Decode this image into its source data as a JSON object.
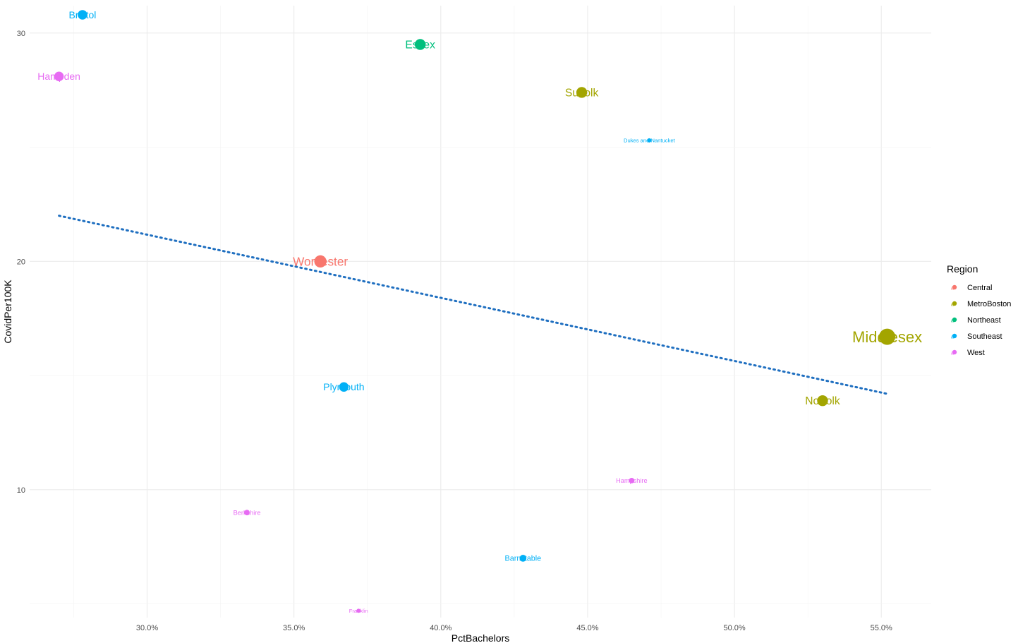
{
  "chart_data": {
    "type": "scatter",
    "xlabel": "PctBachelors",
    "ylabel": "CovidPer100K",
    "xlim": [
      0.26,
      0.567
    ],
    "ylim": [
      4.4,
      31.2
    ],
    "x_ticks": [
      0.3,
      0.35,
      0.4,
      0.45,
      0.5,
      0.55
    ],
    "x_tick_labels": [
      "30.0%",
      "35.0%",
      "40.0%",
      "45.0%",
      "50.0%",
      "55.0%"
    ],
    "y_ticks": [
      10,
      20,
      30
    ],
    "y_tick_labels": [
      "10",
      "20",
      "30"
    ],
    "grid": true,
    "legend": {
      "title": "Region",
      "placement": "right",
      "items": [
        {
          "label": "Central",
          "color": "#F8766D"
        },
        {
          "label": "MetroBoston",
          "color": "#A3A500"
        },
        {
          "label": "Northeast",
          "color": "#00BF7D"
        },
        {
          "label": "Southeast",
          "color": "#00B0F6"
        },
        {
          "label": "West",
          "color": "#E76BF3"
        }
      ]
    },
    "points": [
      {
        "label": "Bristol",
        "region": "Southeast",
        "x": 0.278,
        "y": 30.8,
        "size": 5
      },
      {
        "label": "Essex",
        "region": "Northeast",
        "x": 0.393,
        "y": 29.5,
        "size": 6
      },
      {
        "label": "Hampden",
        "region": "West",
        "x": 0.27,
        "y": 28.1,
        "size": 5
      },
      {
        "label": "Suffolk",
        "region": "MetroBoston",
        "x": 0.448,
        "y": 27.4,
        "size": 6
      },
      {
        "label": "Dukes and Nantucket",
        "region": "Southeast",
        "x": 0.471,
        "y": 25.3,
        "size": 1
      },
      {
        "label": "Worcester",
        "region": "Central",
        "x": 0.359,
        "y": 20.0,
        "size": 7
      },
      {
        "label": "Middlesex",
        "region": "MetroBoston",
        "x": 0.552,
        "y": 16.7,
        "size": 10
      },
      {
        "label": "Plymouth",
        "region": "Southeast",
        "x": 0.367,
        "y": 14.5,
        "size": 5
      },
      {
        "label": "Norfolk",
        "region": "MetroBoston",
        "x": 0.53,
        "y": 13.9,
        "size": 6
      },
      {
        "label": "Hampshire",
        "region": "West",
        "x": 0.465,
        "y": 10.4,
        "size": 2
      },
      {
        "label": "Berkshire",
        "region": "West",
        "x": 0.334,
        "y": 9.0,
        "size": 2
      },
      {
        "label": "Barnstable",
        "region": "Southeast",
        "x": 0.428,
        "y": 7.0,
        "size": 3
      },
      {
        "label": "Franklin",
        "region": "West",
        "x": 0.372,
        "y": 4.7,
        "size": 1
      }
    ],
    "trend_line": {
      "style": "dotted",
      "color": "#1F6FC0",
      "x": [
        0.27,
        0.552
      ],
      "y": [
        22.0,
        14.2
      ]
    }
  }
}
